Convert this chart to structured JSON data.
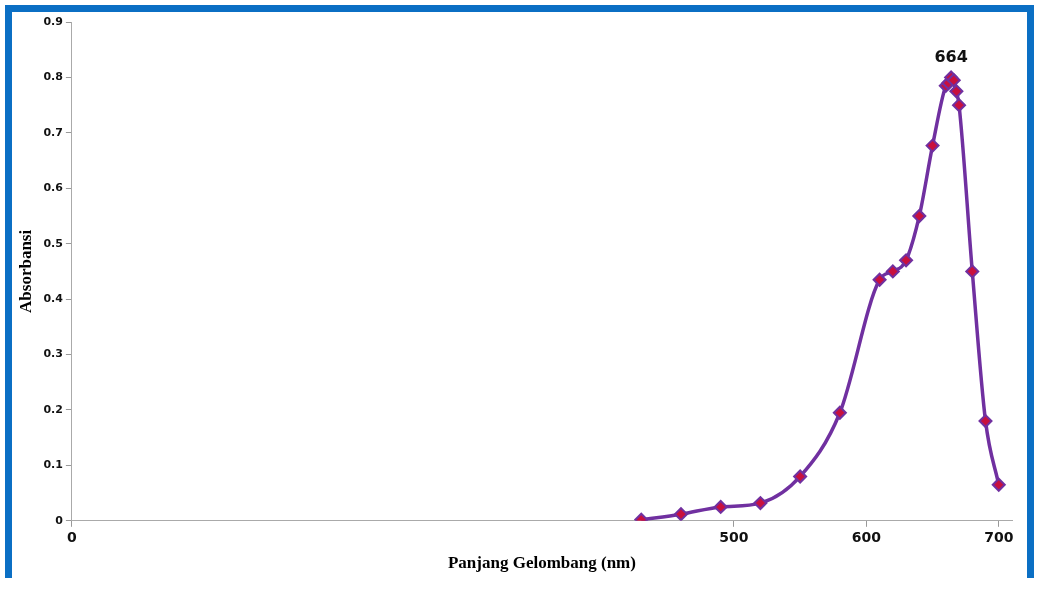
{
  "chart_data": {
    "type": "line",
    "xlabel": "Panjang Gelombang (nm)",
    "ylabel": "Absorbansi",
    "x": [
      430,
      460,
      490,
      520,
      550,
      580,
      610,
      620,
      630,
      640,
      650,
      660,
      662,
      664,
      666,
      668,
      670,
      680,
      690,
      700
    ],
    "series": [
      {
        "color": "#7030a0",
        "values": [
          0.002,
          0.012,
          0.025,
          0.032,
          0.08,
          0.195,
          0.435,
          0.45,
          0.47,
          0.55,
          0.677,
          0.785,
          0.79,
          0.8,
          0.795,
          0.775,
          0.75,
          0.45,
          0.18,
          0.065
        ]
      }
    ],
    "xlim": [
      0,
      710
    ],
    "xticks": [
      0,
      500,
      600,
      700
    ],
    "ylim": [
      0,
      0.9
    ],
    "yticks": [
      0,
      0.1,
      0.2,
      0.3,
      0.4,
      0.5,
      0.6,
      0.7,
      0.8,
      0.9
    ],
    "annotations": [
      {
        "text": "664",
        "x": 664,
        "y": 0.8
      }
    ],
    "grid": false,
    "legend": false,
    "marker": "diamond",
    "line_style": "solid"
  }
}
